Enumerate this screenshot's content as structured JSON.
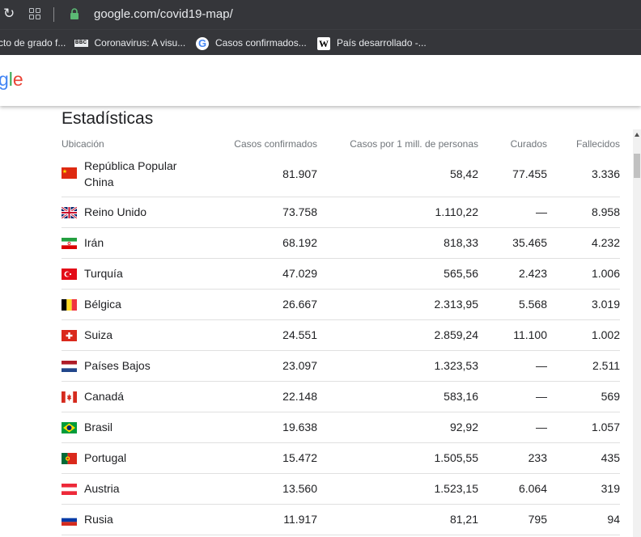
{
  "browser": {
    "url": "google.com/covid19-map/",
    "bookmarks": [
      {
        "label": "cto de grado f...",
        "icon": "none"
      },
      {
        "label": "Coronavirus: A visu...",
        "icon": "bbc-icon"
      },
      {
        "label": "Casos confirmados...",
        "icon": "google-icon"
      },
      {
        "label": "País desarrollado -...",
        "icon": "wikipedia-icon"
      }
    ]
  },
  "header": {
    "logo_text": "gle"
  },
  "stats": {
    "title": "Estadísticas",
    "columns": [
      "Ubicación",
      "Casos confirmados",
      "Casos por 1 mill. de personas",
      "Curados",
      "Fallecidos"
    ],
    "rows": [
      {
        "name_line1": "República Popular",
        "name_line2": "China",
        "confirmed": "81.907",
        "per_million": "58,42",
        "recovered": "77.455",
        "deaths": "3.336",
        "flag": "china-flag"
      },
      {
        "name": "Reino Unido",
        "confirmed": "73.758",
        "per_million": "1.110,22",
        "recovered": "—",
        "deaths": "8.958",
        "flag": "uk-flag"
      },
      {
        "name": "Irán",
        "confirmed": "68.192",
        "per_million": "818,33",
        "recovered": "35.465",
        "deaths": "4.232",
        "flag": "iran-flag"
      },
      {
        "name": "Turquía",
        "confirmed": "47.029",
        "per_million": "565,56",
        "recovered": "2.423",
        "deaths": "1.006",
        "flag": "turkey-flag"
      },
      {
        "name": "Bélgica",
        "confirmed": "26.667",
        "per_million": "2.313,95",
        "recovered": "5.568",
        "deaths": "3.019",
        "flag": "belgium-flag"
      },
      {
        "name": "Suiza",
        "confirmed": "24.551",
        "per_million": "2.859,24",
        "recovered": "11.100",
        "deaths": "1.002",
        "flag": "switzerland-flag"
      },
      {
        "name": "Países Bajos",
        "confirmed": "23.097",
        "per_million": "1.323,53",
        "recovered": "—",
        "deaths": "2.511",
        "flag": "netherlands-flag"
      },
      {
        "name": "Canadá",
        "confirmed": "22.148",
        "per_million": "583,16",
        "recovered": "—",
        "deaths": "569",
        "flag": "canada-flag"
      },
      {
        "name": "Brasil",
        "confirmed": "19.638",
        "per_million": "92,92",
        "recovered": "—",
        "deaths": "1.057",
        "flag": "brazil-flag"
      },
      {
        "name": "Portugal",
        "confirmed": "15.472",
        "per_million": "1.505,55",
        "recovered": "233",
        "deaths": "435",
        "flag": "portugal-flag"
      },
      {
        "name": "Austria",
        "confirmed": "13.560",
        "per_million": "1.523,15",
        "recovered": "6.064",
        "deaths": "319",
        "flag": "austria-flag"
      },
      {
        "name": "Rusia",
        "confirmed": "11.917",
        "per_million": "81,21",
        "recovered": "795",
        "deaths": "94",
        "flag": "russia-flag"
      }
    ]
  }
}
